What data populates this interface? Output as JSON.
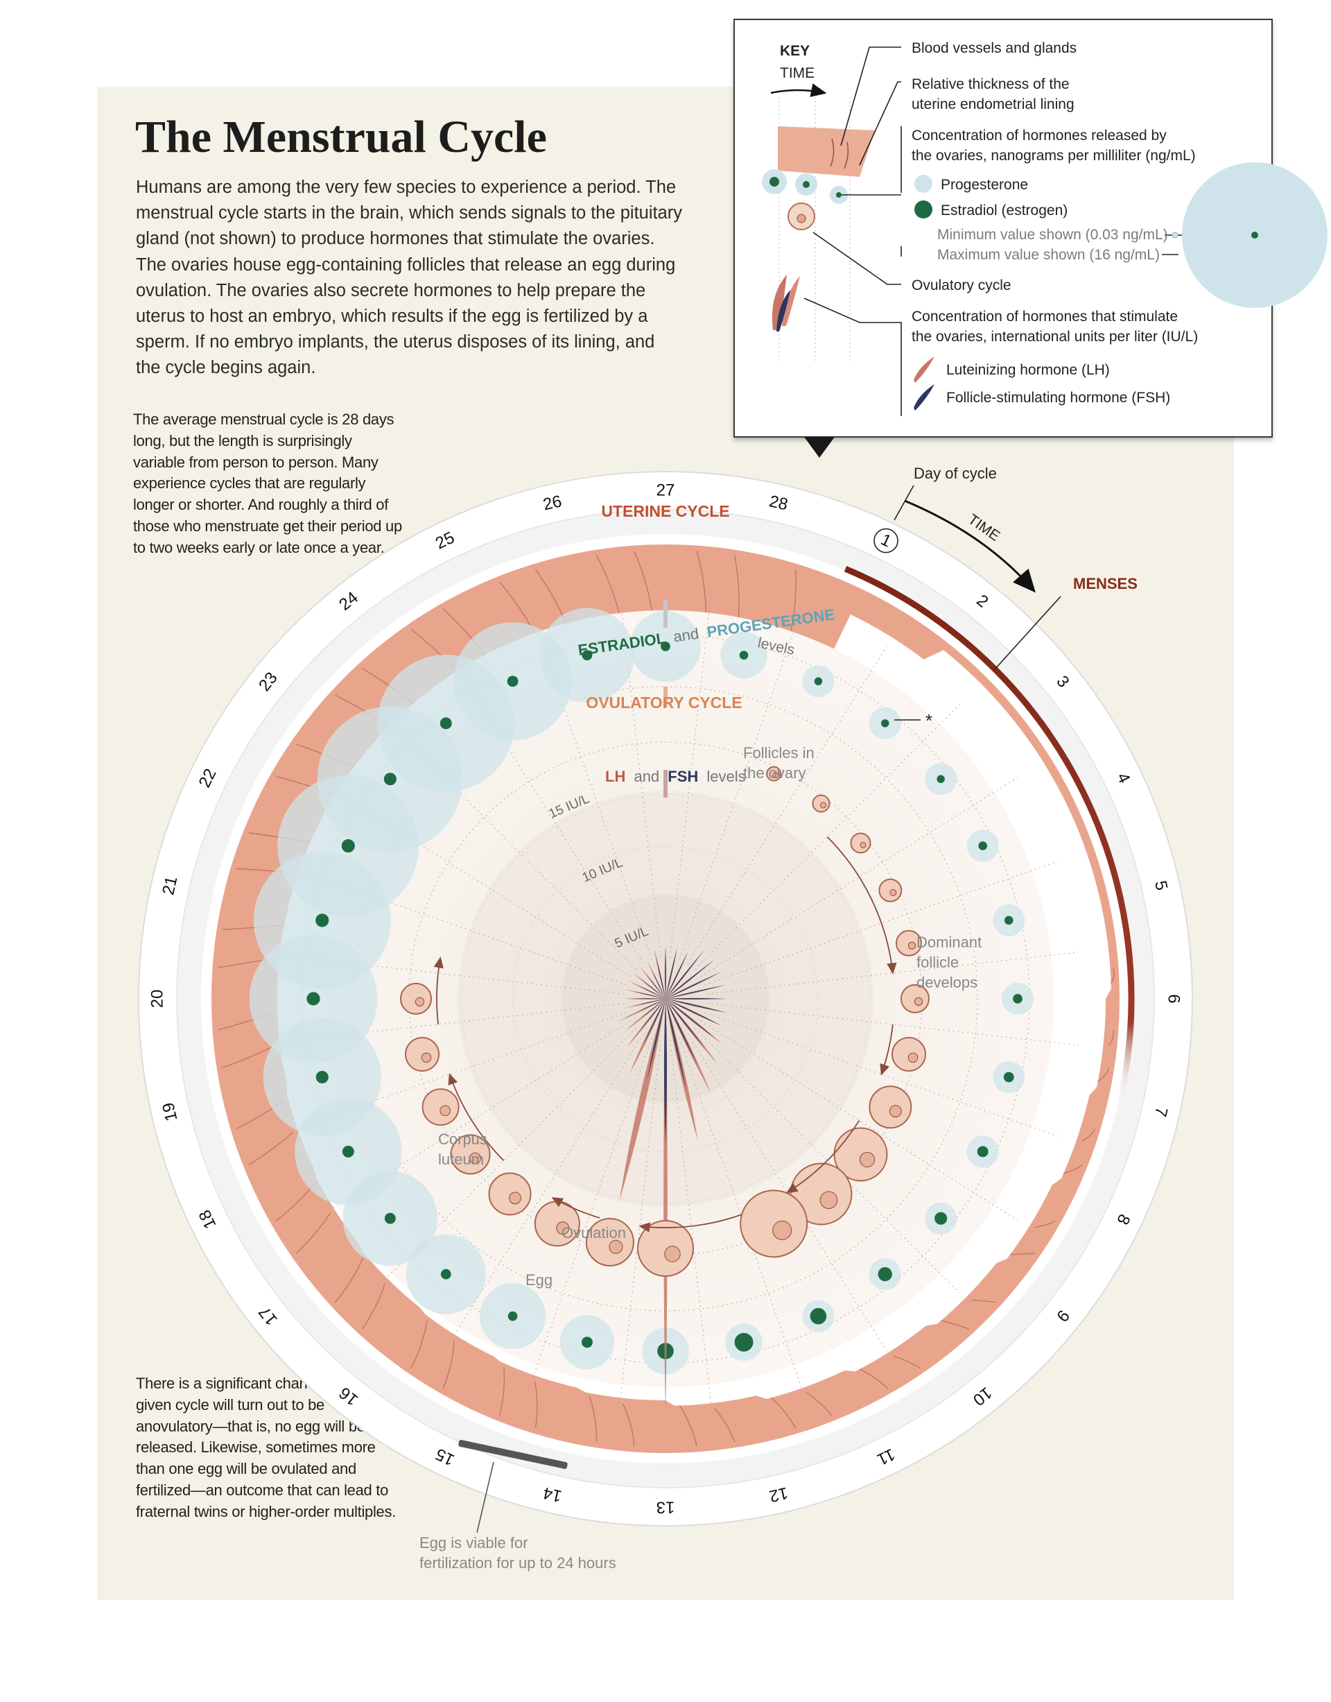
{
  "title": "The Menstrual Cycle",
  "intro": "Humans are among the very few species to experience a period. The menstrual cycle starts in the brain, which sends signals to the pituitary gland (not shown) to produce hormones that stimulate the ovaries. The ovaries house egg-containing follicles that release an egg during ovulation. The ovaries also secrete hormones to help prepare the uterus to host an embryo, which results if the egg is fertilized by a sperm. If no embryo implants, the uterus disposes of its lining, and the cycle begins again.",
  "note_length": "The average menstrual cycle is 28 days long, but the length is surprisingly variable from person to person. Many experience cycles that are regularly longer or shorter. And roughly a third of those who menstruate get their period up to two weeks early or late once a year.",
  "note_anovulatory": "There is a significant chance that any given cycle will turn out to be anovulatory—that is, no egg will be released. Likewise, sometimes more than one egg will be ovulated and fertilized—an outcome that can lead to fraternal twins or higher-order multiples.",
  "key": {
    "heading": "KEY",
    "time": "TIME",
    "blood_vessels": "Blood vessels and glands",
    "thickness_1": "Relative thickness of the",
    "thickness_2": "uterine endometrial lining",
    "conc_ovary_1": "Concentration of hormones released by",
    "conc_ovary_2": "the ovaries, nanograms per milliliter (ng/mL)",
    "progesterone": "Progesterone",
    "estradiol": "Estradiol (estrogen)",
    "min_value": "Minimum value shown (0.03 ng/mL)",
    "max_value": "Maximum value shown (16 ng/mL)",
    "ovulatory": "Ovulatory cycle",
    "conc_pit_1": "Concentration of hormones that stimulate",
    "conc_pit_2": "the ovaries, international units per liter (IU/L)",
    "lh": "Luteinizing hormone (LH)",
    "fsh": "Follicle-stimulating hormone (FSH)"
  },
  "labels": {
    "day_of_cycle": "Day of cycle",
    "time": "TIME",
    "menses": "MENSES",
    "uterine_cycle": "UTERINE CYCLE",
    "estradiol": "ESTRADIOL",
    "and": "and",
    "progesterone": "PROGESTERONE",
    "levels": "levels",
    "ovulatory_cycle": "OVULATORY CYCLE",
    "lh": "LH",
    "fsh": "FSH",
    "follicles_1": "Follicles in",
    "follicles_2": "the ovary",
    "dominant_1": "Dominant",
    "dominant_2": "follicle",
    "dominant_3": "develops",
    "ovulation": "Ovulation",
    "egg": "Egg",
    "corpus_1": "Corpus",
    "corpus_2": "luteum",
    "asterisk": "*",
    "egg_viable_1": "Egg is viable for",
    "egg_viable_2": "fertilization for up to 24 hours",
    "iu15": "15 IU/L",
    "iu10": "10 IU/L",
    "iu5": "5 IU/L"
  },
  "days": [
    "1",
    "2",
    "3",
    "4",
    "5",
    "6",
    "7",
    "8",
    "9",
    "10",
    "11",
    "12",
    "13",
    "14",
    "15",
    "16",
    "17",
    "18",
    "19",
    "20",
    "21",
    "22",
    "23",
    "24",
    "25",
    "26",
    "27",
    "28"
  ],
  "hormones": {
    "progesterone_ng_ml": [
      0.3,
      0.3,
      0.3,
      0.3,
      0.3,
      0.3,
      0.3,
      0.3,
      0.3,
      0.3,
      0.3,
      0.5,
      1,
      1.5,
      2.5,
      4,
      6,
      8,
      10,
      12,
      14,
      15,
      16,
      14,
      10,
      6,
      3,
      1
    ],
    "estradiol_rel": [
      0.05,
      0.05,
      0.05,
      0.06,
      0.06,
      0.07,
      0.08,
      0.09,
      0.11,
      0.13,
      0.16,
      0.19,
      0.16,
      0.09,
      0.07,
      0.08,
      0.09,
      0.1,
      0.11,
      0.12,
      0.12,
      0.12,
      0.11,
      0.1,
      0.09,
      0.08,
      0.07,
      0.06
    ],
    "lh_iu_l": [
      5,
      5,
      5,
      5,
      5,
      5,
      6,
      6,
      7,
      8,
      10,
      14,
      40,
      20,
      8,
      6,
      5,
      5,
      4,
      4,
      4,
      4,
      4,
      4,
      4,
      5,
      5,
      5
    ],
    "fsh_iu_l": [
      5,
      6,
      6,
      6,
      6,
      6,
      6,
      6,
      6,
      6,
      7,
      9,
      14,
      8,
      5,
      4,
      3,
      3,
      3,
      3,
      3,
      3,
      3,
      3,
      3,
      4,
      5,
      5
    ]
  },
  "colors": {
    "panel": "#f4f2e6",
    "endometrium": "#e8a58c",
    "progesterone": "#cfe4ea",
    "estradiol": "#1e6b43",
    "lh": "#c87766",
    "fsh": "#2d3561",
    "menses": "#8b2a1e"
  }
}
